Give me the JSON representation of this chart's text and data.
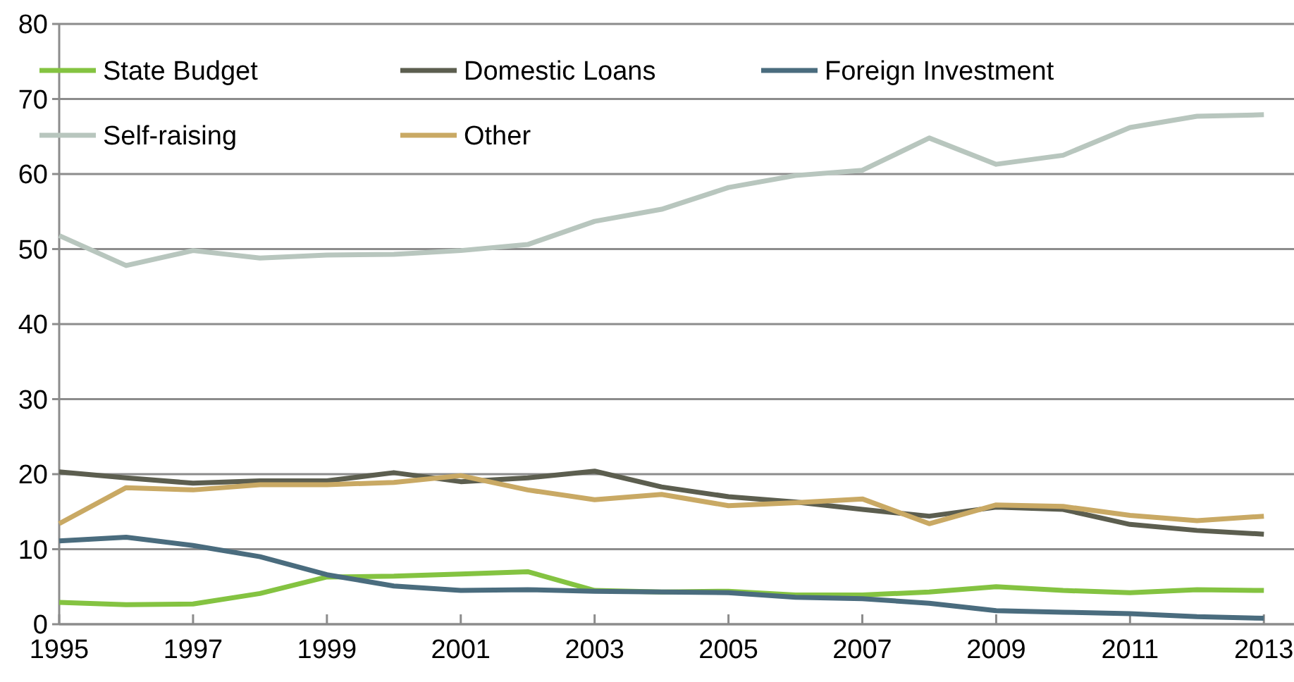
{
  "chart_data": {
    "type": "line",
    "x": [
      1995,
      1996,
      1997,
      1998,
      1999,
      2000,
      2001,
      2002,
      2003,
      2004,
      2005,
      2006,
      2007,
      2008,
      2009,
      2010,
      2011,
      2012,
      2013
    ],
    "series": [
      {
        "name": "State Budget",
        "color": "#84c341",
        "values": [
          2.9,
          2.6,
          2.7,
          4.1,
          6.3,
          6.4,
          6.7,
          7.0,
          4.5,
          4.3,
          4.4,
          3.9,
          3.9,
          4.3,
          5.0,
          4.5,
          4.2,
          4.6,
          4.5
        ]
      },
      {
        "name": "Domestic Loans",
        "color": "#5c5e4f",
        "values": [
          20.3,
          19.5,
          18.8,
          19.1,
          19.1,
          20.2,
          19.0,
          19.5,
          20.4,
          18.3,
          17.0,
          16.3,
          15.3,
          14.4,
          15.6,
          15.3,
          13.3,
          12.5,
          12.0
        ]
      },
      {
        "name": "Foreign Investment",
        "color": "#4a6c7e",
        "values": [
          11.1,
          11.6,
          10.5,
          9.0,
          6.6,
          5.1,
          4.5,
          4.6,
          4.4,
          4.3,
          4.2,
          3.6,
          3.4,
          2.8,
          1.8,
          1.6,
          1.4,
          1.0,
          0.8
        ]
      },
      {
        "name": "Self-raising",
        "color": "#b8c6be",
        "values": [
          51.8,
          47.8,
          49.8,
          48.8,
          49.2,
          49.3,
          49.8,
          50.6,
          53.7,
          55.3,
          58.2,
          59.8,
          60.5,
          64.8,
          61.3,
          62.5,
          66.2,
          67.7,
          67.9
        ]
      },
      {
        "name": "Other",
        "color": "#c9a964",
        "values": [
          13.4,
          18.2,
          17.9,
          18.6,
          18.6,
          18.9,
          19.8,
          17.9,
          16.6,
          17.3,
          15.8,
          16.2,
          16.7,
          13.4,
          15.9,
          15.7,
          14.5,
          13.8,
          14.4
        ]
      }
    ],
    "xlim": [
      1995,
      2013.45
    ],
    "xticks": [
      1995,
      1997,
      1999,
      2001,
      2003,
      2005,
      2007,
      2009,
      2011,
      2013
    ],
    "ylim": [
      0,
      80
    ],
    "yticks": [
      0,
      10,
      20,
      30,
      40,
      50,
      60,
      70,
      80
    ],
    "grid": "y",
    "legend": "top left",
    "marker": "none",
    "line_style": "solid"
  }
}
